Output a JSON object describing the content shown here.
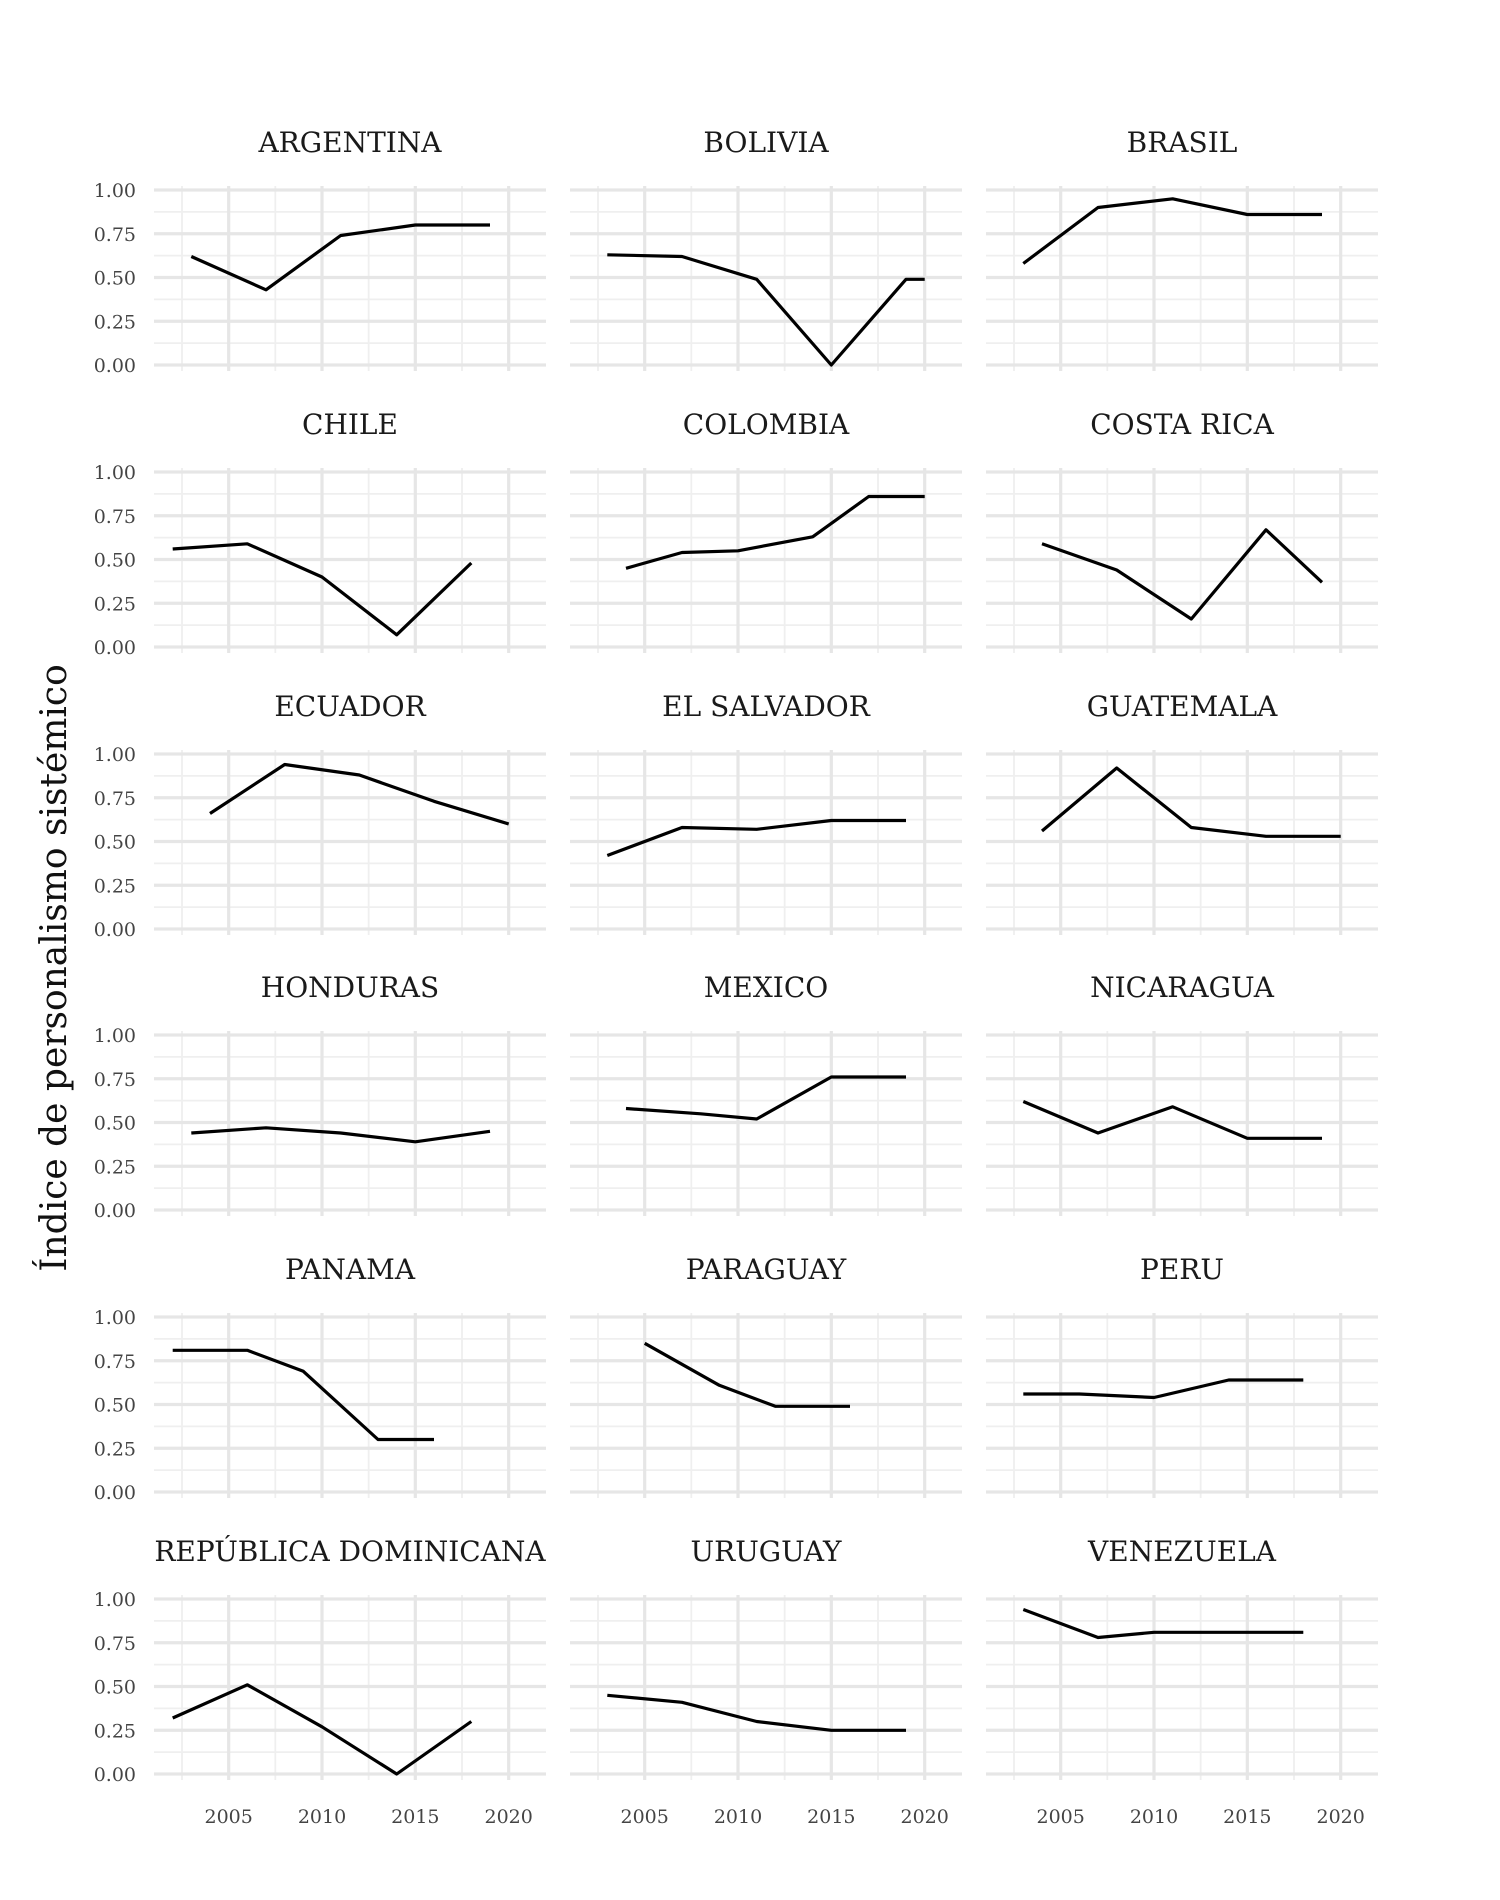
{
  "chart_data": {
    "type": "line",
    "layout": "facet-grid",
    "ylabel": "Índice de personalismo sistémico",
    "xlabel": "",
    "xlim": [
      2001,
      2022
    ],
    "ylim": [
      0,
      1
    ],
    "x_ticks": [
      2005,
      2010,
      2015,
      2020
    ],
    "x_tick_labels": [
      "2005",
      "2010",
      "2015",
      "2020"
    ],
    "y_ticks": [
      0,
      0.25,
      0.5,
      0.75,
      1
    ],
    "y_tick_labels": [
      "0.00",
      "0.25",
      "0.50",
      "0.75",
      "1.00"
    ],
    "grid": true,
    "line_color": "#000000",
    "panels": [
      {
        "title": "ARGENTINA",
        "x": [
          2003,
          2007,
          2011,
          2015,
          2019
        ],
        "y": [
          0.62,
          0.43,
          0.74,
          0.8,
          0.8
        ]
      },
      {
        "title": "BOLIVIA",
        "x": [
          2003,
          2007,
          2011,
          2015,
          2019,
          2020
        ],
        "y": [
          0.63,
          0.62,
          0.49,
          0.0,
          0.49,
          0.49
        ]
      },
      {
        "title": "BRASIL",
        "x": [
          2003,
          2007,
          2011,
          2015,
          2019
        ],
        "y": [
          0.58,
          0.9,
          0.95,
          0.86,
          0.86
        ]
      },
      {
        "title": "CHILE",
        "x": [
          2002,
          2006,
          2010,
          2014,
          2018
        ],
        "y": [
          0.56,
          0.59,
          0.4,
          0.07,
          0.48
        ]
      },
      {
        "title": "COLOMBIA",
        "x": [
          2004,
          2007,
          2010,
          2014,
          2017,
          2020
        ],
        "y": [
          0.45,
          0.54,
          0.55,
          0.63,
          0.86,
          0.86
        ]
      },
      {
        "title": "COSTA RICA",
        "x": [
          2004,
          2008,
          2012,
          2016,
          2019
        ],
        "y": [
          0.59,
          0.44,
          0.16,
          0.67,
          0.37
        ]
      },
      {
        "title": "ECUADOR",
        "x": [
          2004,
          2008,
          2012,
          2016,
          2020
        ],
        "y": [
          0.66,
          0.94,
          0.88,
          0.73,
          0.6
        ]
      },
      {
        "title": "EL SALVADOR",
        "x": [
          2003,
          2007,
          2011,
          2015,
          2019
        ],
        "y": [
          0.42,
          0.58,
          0.57,
          0.62,
          0.62
        ]
      },
      {
        "title": "GUATEMALA",
        "x": [
          2004,
          2008,
          2012,
          2016,
          2020
        ],
        "y": [
          0.56,
          0.92,
          0.58,
          0.53,
          0.53
        ]
      },
      {
        "title": "HONDURAS",
        "x": [
          2003,
          2007,
          2011,
          2015,
          2019
        ],
        "y": [
          0.44,
          0.47,
          0.44,
          0.39,
          0.45
        ]
      },
      {
        "title": "MEXICO",
        "x": [
          2004,
          2008,
          2011,
          2015,
          2019
        ],
        "y": [
          0.58,
          0.55,
          0.52,
          0.76,
          0.76
        ]
      },
      {
        "title": "NICARAGUA",
        "x": [
          2003,
          2007,
          2011,
          2015,
          2019
        ],
        "y": [
          0.62,
          0.44,
          0.59,
          0.41,
          0.41
        ]
      },
      {
        "title": "PANAMA",
        "x": [
          2002,
          2006,
          2009,
          2013,
          2016
        ],
        "y": [
          0.81,
          0.81,
          0.69,
          0.3,
          0.3
        ]
      },
      {
        "title": "PARAGUAY",
        "x": [
          2005,
          2009,
          2012,
          2016
        ],
        "y": [
          0.85,
          0.61,
          0.49,
          0.49
        ]
      },
      {
        "title": "PERU",
        "x": [
          2003,
          2006,
          2010,
          2014,
          2018
        ],
        "y": [
          0.56,
          0.56,
          0.54,
          0.64,
          0.64
        ]
      },
      {
        "title": "REPÚBLICA DOMINICANA",
        "x": [
          2002,
          2006,
          2010,
          2014,
          2018
        ],
        "y": [
          0.32,
          0.51,
          0.27,
          0.0,
          0.3
        ]
      },
      {
        "title": "URUGUAY",
        "x": [
          2003,
          2007,
          2011,
          2015,
          2019
        ],
        "y": [
          0.45,
          0.41,
          0.3,
          0.25,
          0.25
        ]
      },
      {
        "title": "VENEZUELA",
        "x": [
          2003,
          2007,
          2010,
          2014,
          2018
        ],
        "y": [
          0.94,
          0.78,
          0.81,
          0.81,
          0.81
        ]
      }
    ]
  }
}
